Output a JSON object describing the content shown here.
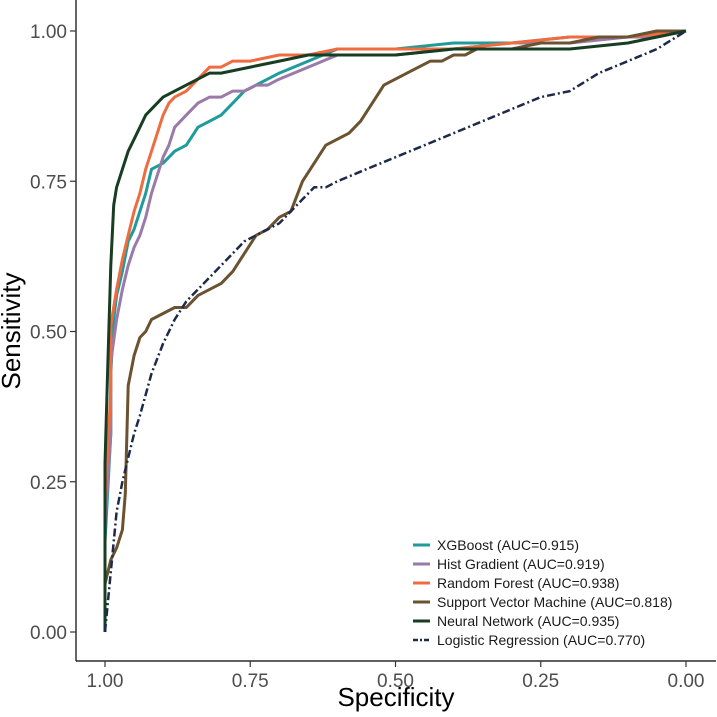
{
  "chart_data": {
    "type": "line",
    "title": "",
    "xlabel": "Specificity",
    "ylabel": "Sensitivity",
    "xlim": [
      1.0,
      0.0
    ],
    "ylim": [
      0.0,
      1.0
    ],
    "x_reversed": true,
    "grid": false,
    "legend_position": "bottom-right",
    "x_ticks": [
      1.0,
      0.75,
      0.5,
      0.25,
      0.0
    ],
    "x_tick_labels": [
      "1.00",
      "0.75",
      "0.50",
      "0.25",
      "0.00"
    ],
    "y_ticks": [
      0.0,
      0.25,
      0.5,
      0.75,
      1.0
    ],
    "y_tick_labels": [
      "0.00",
      "0.25",
      "0.50",
      "0.75",
      "1.00"
    ],
    "series": [
      {
        "name": "XGBoost",
        "auc": 0.915,
        "label": "XGBoost (AUC=0.915)",
        "color": "#1f9b9b",
        "dash": "solid",
        "specificity": [
          1.0,
          1.0,
          0.99,
          0.99,
          0.985,
          0.98,
          0.97,
          0.96,
          0.95,
          0.94,
          0.93,
          0.92,
          0.9,
          0.88,
          0.86,
          0.84,
          0.82,
          0.8,
          0.78,
          0.76,
          0.74,
          0.72,
          0.7,
          0.65,
          0.6,
          0.5,
          0.4,
          0.3,
          0.2,
          0.1,
          0.05,
          0.0
        ],
        "sensitivity": [
          0.0,
          0.15,
          0.33,
          0.43,
          0.52,
          0.56,
          0.6,
          0.65,
          0.67,
          0.7,
          0.73,
          0.77,
          0.78,
          0.8,
          0.81,
          0.84,
          0.85,
          0.86,
          0.88,
          0.9,
          0.91,
          0.92,
          0.93,
          0.95,
          0.97,
          0.97,
          0.98,
          0.98,
          0.99,
          0.99,
          1.0,
          1.0
        ]
      },
      {
        "name": "Hist Gradient",
        "auc": 0.919,
        "label": "Hist Gradient (AUC=0.919)",
        "color": "#9a7aa8",
        "dash": "solid",
        "specificity": [
          1.0,
          1.0,
          0.99,
          0.99,
          0.98,
          0.97,
          0.96,
          0.95,
          0.94,
          0.93,
          0.92,
          0.91,
          0.9,
          0.89,
          0.88,
          0.86,
          0.84,
          0.82,
          0.8,
          0.78,
          0.76,
          0.74,
          0.72,
          0.7,
          0.65,
          0.6,
          0.5,
          0.4,
          0.3,
          0.2,
          0.1,
          0.05,
          0.0
        ],
        "sensitivity": [
          0.0,
          0.18,
          0.33,
          0.45,
          0.52,
          0.57,
          0.61,
          0.64,
          0.66,
          0.69,
          0.73,
          0.76,
          0.79,
          0.81,
          0.84,
          0.86,
          0.88,
          0.89,
          0.89,
          0.9,
          0.9,
          0.91,
          0.91,
          0.92,
          0.94,
          0.96,
          0.96,
          0.97,
          0.98,
          0.98,
          0.99,
          0.99,
          1.0
        ]
      },
      {
        "name": "Random Forest",
        "auc": 0.938,
        "label": "Random Forest (AUC=0.938)",
        "color": "#ef6c41",
        "dash": "solid",
        "specificity": [
          1.0,
          1.0,
          0.99,
          0.99,
          0.98,
          0.97,
          0.96,
          0.95,
          0.94,
          0.93,
          0.92,
          0.91,
          0.9,
          0.89,
          0.88,
          0.86,
          0.84,
          0.82,
          0.8,
          0.78,
          0.75,
          0.7,
          0.65,
          0.6,
          0.5,
          0.4,
          0.3,
          0.2,
          0.1,
          0.0
        ],
        "sensitivity": [
          0.0,
          0.22,
          0.4,
          0.51,
          0.57,
          0.62,
          0.66,
          0.7,
          0.73,
          0.77,
          0.8,
          0.83,
          0.86,
          0.88,
          0.89,
          0.9,
          0.92,
          0.94,
          0.94,
          0.95,
          0.95,
          0.96,
          0.96,
          0.97,
          0.97,
          0.97,
          0.98,
          0.99,
          0.99,
          1.0
        ]
      },
      {
        "name": "Support Vector Machine",
        "auc": 0.818,
        "label": "Support Vector Machine (AUC=0.818)",
        "color": "#6b5230",
        "dash": "solid",
        "specificity": [
          1.0,
          1.0,
          0.99,
          0.98,
          0.97,
          0.965,
          0.96,
          0.95,
          0.94,
          0.93,
          0.92,
          0.9,
          0.88,
          0.86,
          0.85,
          0.84,
          0.82,
          0.8,
          0.78,
          0.76,
          0.74,
          0.72,
          0.7,
          0.68,
          0.66,
          0.64,
          0.62,
          0.6,
          0.58,
          0.56,
          0.54,
          0.52,
          0.5,
          0.48,
          0.46,
          0.44,
          0.42,
          0.4,
          0.38,
          0.36,
          0.34,
          0.3,
          0.25,
          0.2,
          0.15,
          0.1,
          0.05,
          0.0
        ],
        "sensitivity": [
          0.0,
          0.08,
          0.12,
          0.14,
          0.17,
          0.23,
          0.41,
          0.46,
          0.49,
          0.5,
          0.52,
          0.53,
          0.54,
          0.54,
          0.55,
          0.56,
          0.57,
          0.58,
          0.6,
          0.63,
          0.66,
          0.67,
          0.69,
          0.7,
          0.75,
          0.78,
          0.81,
          0.82,
          0.83,
          0.85,
          0.88,
          0.91,
          0.92,
          0.93,
          0.94,
          0.95,
          0.95,
          0.96,
          0.96,
          0.97,
          0.97,
          0.97,
          0.98,
          0.98,
          0.99,
          0.99,
          1.0,
          1.0
        ]
      },
      {
        "name": "Neural Network",
        "auc": 0.935,
        "label": "Neural Network (AUC=0.935)",
        "color": "#173d22",
        "dash": "solid",
        "specificity": [
          1.0,
          1.0,
          0.995,
          0.99,
          0.985,
          0.98,
          0.97,
          0.96,
          0.95,
          0.94,
          0.93,
          0.92,
          0.91,
          0.9,
          0.88,
          0.86,
          0.84,
          0.82,
          0.8,
          0.75,
          0.7,
          0.65,
          0.6,
          0.5,
          0.4,
          0.3,
          0.2,
          0.1,
          0.05,
          0.0
        ],
        "sensitivity": [
          0.0,
          0.28,
          0.45,
          0.61,
          0.71,
          0.74,
          0.77,
          0.8,
          0.82,
          0.84,
          0.86,
          0.87,
          0.88,
          0.89,
          0.9,
          0.91,
          0.92,
          0.93,
          0.93,
          0.94,
          0.95,
          0.96,
          0.96,
          0.96,
          0.97,
          0.97,
          0.97,
          0.98,
          0.99,
          1.0
        ]
      },
      {
        "name": "Logistic Regression",
        "auc": 0.77,
        "label": "Logistic Regression (AUC=0.770)",
        "color": "#1e2a4a",
        "dash": "dashdot",
        "specificity": [
          1.0,
          0.99,
          0.98,
          0.97,
          0.96,
          0.95,
          0.94,
          0.92,
          0.9,
          0.88,
          0.86,
          0.84,
          0.82,
          0.8,
          0.78,
          0.76,
          0.74,
          0.72,
          0.7,
          0.68,
          0.66,
          0.64,
          0.62,
          0.6,
          0.55,
          0.5,
          0.45,
          0.4,
          0.35,
          0.3,
          0.25,
          0.2,
          0.15,
          0.1,
          0.05,
          0.0
        ],
        "sensitivity": [
          0.0,
          0.1,
          0.2,
          0.25,
          0.29,
          0.33,
          0.36,
          0.43,
          0.48,
          0.52,
          0.55,
          0.57,
          0.59,
          0.61,
          0.63,
          0.65,
          0.66,
          0.67,
          0.68,
          0.7,
          0.72,
          0.74,
          0.74,
          0.75,
          0.77,
          0.79,
          0.81,
          0.83,
          0.85,
          0.87,
          0.89,
          0.9,
          0.93,
          0.95,
          0.97,
          1.0
        ]
      }
    ]
  }
}
